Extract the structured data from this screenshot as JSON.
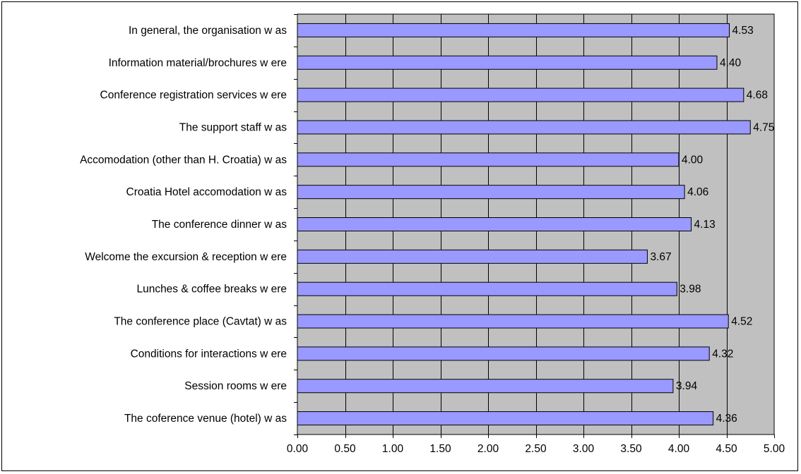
{
  "chart_data": {
    "type": "bar",
    "orientation": "horizontal",
    "title": "",
    "xlabel": "",
    "ylabel": "",
    "xlim": [
      0,
      5
    ],
    "x_ticks": [
      "0.00",
      "0.50",
      "1.00",
      "1.50",
      "2.00",
      "2.50",
      "3.00",
      "3.50",
      "4.00",
      "4.50",
      "5.00"
    ],
    "grid": "vertical",
    "legend": "none",
    "categories": [
      "In general, the organisation w as",
      "Information material/brochures w ere",
      "Conference registration services w ere",
      "The support staff w as",
      "Accomodation (other than  H. Croatia) w as",
      "Croatia Hotel accomodation w as",
      "The conference dinner w as",
      "Welcome the excursion & reception w ere",
      "Lunches & coffee breaks w ere",
      "The conference place (Cavtat) w as",
      "Conditions for interactions w ere",
      "Session  rooms w ere",
      "The coference venue (hotel) w as"
    ],
    "values": [
      4.53,
      4.4,
      4.68,
      4.75,
      4.0,
      4.06,
      4.13,
      3.67,
      3.98,
      4.52,
      4.32,
      3.94,
      4.36
    ],
    "data_labels": [
      "4.53",
      "4.40",
      "4.68",
      "4.75",
      "4.00",
      "4.06",
      "4.13",
      "3.67",
      "3.98",
      "4.52",
      "4.32",
      "3.94",
      "4.36"
    ],
    "colors": {
      "bar_fill": "#9999ff",
      "bar_stroke": "#000000",
      "plot_background": "#c0c0c0",
      "gridline": "#000000",
      "frame": "#000000"
    }
  }
}
